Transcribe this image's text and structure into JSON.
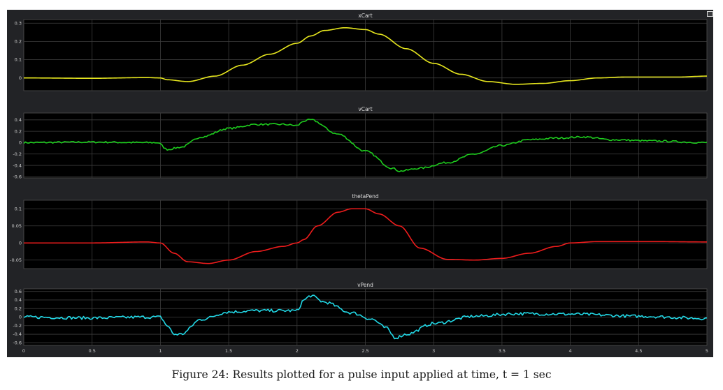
{
  "caption": "Figure 24: Results plotted for a pulse input applied at time, t = 1 sec",
  "x_ticks": [
    "0",
    "0.5",
    "1",
    "1.5",
    "2",
    "2.5",
    "3",
    "3.5",
    "4",
    "4.5",
    "5"
  ],
  "chart_data": [
    {
      "type": "line",
      "title": "xCart",
      "color": "#e6e61e",
      "xlim": [
        0,
        5
      ],
      "ylim": [
        -0.07,
        0.32
      ],
      "yticks": [
        {
          "v": 0.3,
          "label": "0.3"
        },
        {
          "v": 0.2,
          "label": "0.2"
        },
        {
          "v": 0.1,
          "label": "0.1"
        },
        {
          "v": 0.0,
          "label": "0"
        }
      ],
      "noise": 0,
      "x": [
        0,
        0.5,
        0.9,
        1.0,
        1.05,
        1.2,
        1.4,
        1.6,
        1.8,
        2.0,
        2.1,
        2.2,
        2.35,
        2.5,
        2.6,
        2.8,
        3.0,
        3.2,
        3.4,
        3.6,
        3.8,
        4.0,
        4.2,
        4.4,
        4.6,
        4.8,
        5.0
      ],
      "y": [
        0,
        -0.002,
        0.002,
        0.0,
        -0.01,
        -0.02,
        0.01,
        0.07,
        0.13,
        0.19,
        0.23,
        0.26,
        0.275,
        0.265,
        0.24,
        0.16,
        0.08,
        0.02,
        -0.02,
        -0.035,
        -0.03,
        -0.015,
        0.0,
        0.005,
        0.005,
        0.005,
        0.01
      ]
    },
    {
      "type": "line",
      "title": "vCart",
      "color": "#1ecc1e",
      "xlim": [
        0,
        5
      ],
      "ylim": [
        -0.62,
        0.52
      ],
      "yticks": [
        {
          "v": 0.4,
          "label": "0.4"
        },
        {
          "v": 0.2,
          "label": "0.2"
        },
        {
          "v": 0.0,
          "label": "0"
        },
        {
          "v": -0.2,
          "label": "-0.2"
        },
        {
          "v": -0.4,
          "label": "-0.4"
        },
        {
          "v": -0.6,
          "label": "-0.6"
        }
      ],
      "noise": 0.015,
      "x": [
        0,
        0.5,
        0.9,
        0.98,
        1.05,
        1.15,
        1.3,
        1.5,
        1.7,
        1.9,
        2.0,
        2.05,
        2.1,
        2.3,
        2.5,
        2.7,
        2.75,
        2.9,
        3.1,
        3.3,
        3.5,
        3.7,
        3.9,
        4.1,
        4.3,
        4.6,
        5.0
      ],
      "y": [
        0.0,
        0.01,
        0.0,
        0.0,
        -0.12,
        -0.08,
        0.1,
        0.25,
        0.32,
        0.32,
        0.3,
        0.38,
        0.4,
        0.15,
        -0.15,
        -0.45,
        -0.5,
        -0.45,
        -0.35,
        -0.2,
        -0.05,
        0.05,
        0.08,
        0.1,
        0.05,
        0.03,
        0.0
      ]
    },
    {
      "type": "line",
      "title": "thetaPend",
      "color": "#ee1c1c",
      "xlim": [
        0,
        5
      ],
      "ylim": [
        -0.075,
        0.125
      ],
      "yticks": [
        {
          "v": 0.1,
          "label": "0.1"
        },
        {
          "v": 0.05,
          "label": "0.05"
        },
        {
          "v": 0.0,
          "label": "0"
        },
        {
          "v": -0.05,
          "label": "-0.05"
        }
      ],
      "noise": 0,
      "x": [
        0,
        0.5,
        0.9,
        1.0,
        1.1,
        1.2,
        1.35,
        1.5,
        1.7,
        1.9,
        2.0,
        2.05,
        2.15,
        2.3,
        2.4,
        2.5,
        2.6,
        2.75,
        2.9,
        3.1,
        3.3,
        3.5,
        3.7,
        3.9,
        4.0,
        4.2,
        4.6,
        5.0
      ],
      "y": [
        0,
        0.0,
        0.003,
        0.0,
        -0.03,
        -0.055,
        -0.06,
        -0.05,
        -0.025,
        -0.01,
        0.0,
        0.01,
        0.05,
        0.09,
        0.1,
        0.1,
        0.085,
        0.05,
        -0.015,
        -0.048,
        -0.05,
        -0.045,
        -0.03,
        -0.01,
        0.0,
        0.004,
        0.004,
        0.003
      ]
    },
    {
      "type": "line",
      "title": "vPend",
      "color": "#22d8e6",
      "xlim": [
        0,
        5
      ],
      "ylim": [
        -0.66,
        0.66
      ],
      "yticks": [
        {
          "v": 0.6,
          "label": "0.6"
        },
        {
          "v": 0.4,
          "label": "0.4"
        },
        {
          "v": 0.2,
          "label": "0.2"
        },
        {
          "v": 0.0,
          "label": "0"
        },
        {
          "v": -0.2,
          "label": "-0.2"
        },
        {
          "v": -0.4,
          "label": "-0.4"
        },
        {
          "v": -0.6,
          "label": "-0.6"
        }
      ],
      "noise": 0.035,
      "x": [
        0,
        0.5,
        0.9,
        1.0,
        1.05,
        1.1,
        1.15,
        1.3,
        1.5,
        1.7,
        1.9,
        2.0,
        2.05,
        2.1,
        2.2,
        2.4,
        2.55,
        2.65,
        2.72,
        2.8,
        3.0,
        3.3,
        3.6,
        4.0,
        4.5,
        5.0
      ],
      "y": [
        0.0,
        -0.02,
        0.0,
        0.0,
        -0.2,
        -0.4,
        -0.4,
        -0.05,
        0.12,
        0.15,
        0.15,
        0.15,
        0.4,
        0.5,
        0.35,
        0.1,
        -0.05,
        -0.25,
        -0.48,
        -0.4,
        -0.15,
        0.02,
        0.08,
        0.07,
        0.02,
        -0.03
      ]
    }
  ]
}
